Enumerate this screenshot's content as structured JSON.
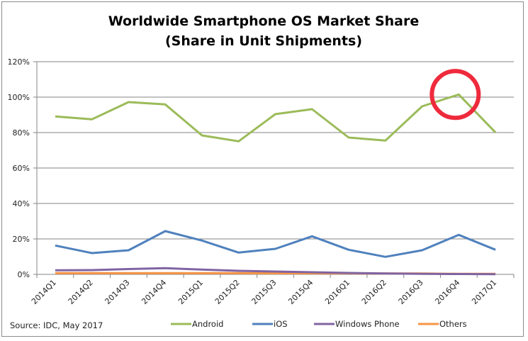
{
  "chart_data": {
    "type": "line",
    "title": "Worldwide Smartphone OS Market Share",
    "subtitle": "(Share in Unit Shipments)",
    "xlabel": "",
    "ylabel": "",
    "ylim": [
      0,
      120
    ],
    "y_ticks": [
      "0%",
      "20%",
      "40%",
      "60%",
      "80%",
      "100%",
      "120%"
    ],
    "y_tick_values": [
      0,
      20,
      40,
      60,
      80,
      100,
      120
    ],
    "grid": true,
    "legend_position": "bottom",
    "categories": [
      "2014Q1",
      "2014Q2",
      "2014Q3",
      "2014Q4",
      "2015Q1",
      "2015Q2",
      "2015Q3",
      "2015Q4",
      "2016Q1",
      "2016Q2",
      "2016Q3",
      "2016Q4",
      "2017Q1"
    ],
    "series": [
      {
        "name": "Android",
        "color": "#9bbb59",
        "values": [
          89.1,
          87.5,
          97.2,
          95.9,
          78.4,
          75.1,
          90.4,
          93.2,
          77.2,
          75.5,
          94.8,
          101.5,
          80.1
        ]
      },
      {
        "name": "iOS",
        "color": "#4f81bd",
        "values": [
          16.3,
          12.0,
          13.6,
          24.4,
          19.1,
          12.3,
          14.4,
          21.5,
          13.9,
          9.9,
          13.6,
          22.3,
          13.9
        ]
      },
      {
        "name": "Windows Phone",
        "color": "#8064a2",
        "values": [
          2.3,
          2.4,
          3.0,
          3.5,
          2.7,
          2.0,
          1.6,
          1.2,
          0.8,
          0.5,
          0.3,
          0.2,
          0.1
        ]
      },
      {
        "name": "Others",
        "color": "#f79646",
        "values": [
          0.7,
          0.7,
          0.7,
          0.7,
          0.7,
          0.7,
          0.6,
          0.6,
          0.6,
          0.5,
          0.5,
          0.3,
          0.3
        ]
      }
    ],
    "annotations": [
      {
        "type": "circle",
        "target_category": "2016Q4",
        "target_series": "Android",
        "color": "#ee2a3c"
      }
    ],
    "source": "Source: IDC, May 2017"
  }
}
